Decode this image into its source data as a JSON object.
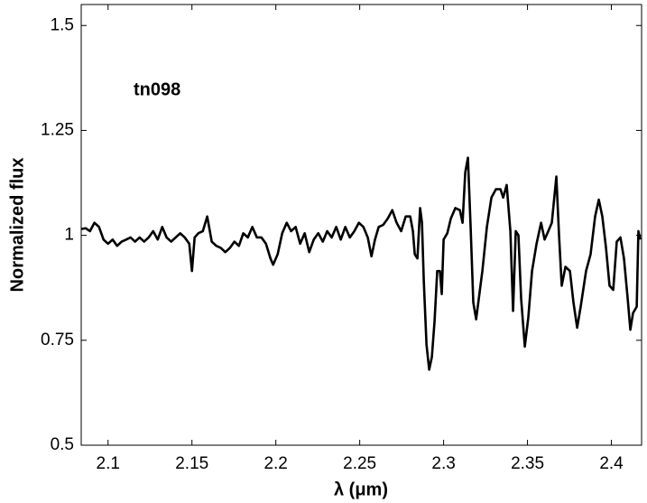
{
  "chart_data": {
    "type": "line",
    "xlabel": "λ (μm)",
    "ylabel": "Normalized flux",
    "annotation": "tn098",
    "color": "#000000",
    "x": [
      2.0839,
      2.0866,
      2.0892,
      2.0919,
      2.0946,
      2.0973,
      2.1,
      2.1027,
      2.1054,
      2.1081,
      2.1108,
      2.1134,
      2.1161,
      2.1188,
      2.1215,
      2.1242,
      2.1269,
      2.1296,
      2.1323,
      2.1349,
      2.1376,
      2.1403,
      2.143,
      2.1457,
      2.1484,
      2.15,
      2.1516,
      2.1538,
      2.1565,
      2.1591,
      2.1618,
      2.1645,
      2.1672,
      2.1699,
      2.1726,
      2.1753,
      2.178,
      2.1806,
      2.1833,
      2.186,
      2.1887,
      2.1914,
      2.1941,
      2.1968,
      2.1984,
      2.2011,
      2.2038,
      2.2065,
      2.2091,
      2.2118,
      2.2145,
      2.2172,
      2.2199,
      2.2226,
      2.2253,
      2.228,
      2.2306,
      2.2333,
      2.236,
      2.2387,
      2.2414,
      2.2441,
      2.2468,
      2.2495,
      2.2522,
      2.2548,
      2.257,
      2.2591,
      2.2613,
      2.264,
      2.2667,
      2.2694,
      2.272,
      2.2747,
      2.2774,
      2.2801,
      2.2817,
      2.2828,
      2.2844,
      2.286,
      2.2871,
      2.2882,
      2.2898,
      2.2914,
      2.293,
      2.2946,
      2.2962,
      2.2978,
      2.2989,
      2.3,
      2.3022,
      2.3043,
      2.307,
      2.3097,
      2.3113,
      2.3129,
      2.3145,
      2.3161,
      2.3177,
      2.3194,
      2.321,
      2.3231,
      2.3258,
      2.3285,
      2.3312,
      2.3339,
      2.3355,
      2.3376,
      2.3398,
      2.3414,
      2.343,
      2.3446,
      2.3462,
      2.3484,
      2.3505,
      2.3527,
      2.3554,
      2.3581,
      2.3602,
      2.3624,
      2.3645,
      2.3672,
      2.3688,
      2.3704,
      2.3726,
      2.3753,
      2.3774,
      2.3796,
      2.3817,
      2.3849,
      2.3876,
      2.3903,
      2.3925,
      2.3946,
      2.3968,
      2.3989,
      2.4011,
      2.4032,
      2.4054,
      2.4075,
      2.4097,
      2.4113,
      2.4129,
      2.4151,
      2.4161,
      2.4172
    ],
    "values": [
      1.015,
      1.017,
      1.01,
      1.03,
      1.02,
      0.99,
      0.98,
      0.99,
      0.975,
      0.985,
      0.99,
      0.995,
      0.985,
      0.995,
      0.985,
      0.995,
      1.01,
      0.99,
      1.02,
      0.995,
      0.985,
      0.995,
      1.005,
      0.995,
      0.98,
      0.915,
      0.995,
      1.005,
      1.01,
      1.045,
      0.985,
      0.975,
      0.97,
      0.96,
      0.97,
      0.985,
      0.975,
      1.005,
      0.995,
      1.02,
      0.995,
      0.995,
      0.98,
      0.945,
      0.93,
      0.955,
      1.005,
      1.03,
      1.01,
      1.02,
      0.98,
      1.005,
      0.96,
      0.99,
      1.005,
      0.985,
      1.01,
      0.995,
      1.02,
      0.99,
      1.02,
      0.995,
      1.01,
      1.03,
      1.02,
      0.995,
      0.95,
      0.99,
      1.02,
      1.025,
      1.04,
      1.06,
      1.03,
      1.01,
      1.045,
      1.045,
      1.01,
      0.955,
      0.945,
      1.065,
      1.03,
      0.89,
      0.74,
      0.68,
      0.71,
      0.795,
      0.915,
      0.915,
      0.86,
      0.99,
      1.005,
      1.04,
      1.065,
      1.06,
      1.03,
      1.15,
      1.185,
      1.02,
      0.84,
      0.8,
      0.85,
      0.915,
      1.02,
      1.09,
      1.11,
      1.11,
      1.09,
      1.12,
      1.01,
      0.82,
      1.01,
      1.0,
      0.85,
      0.735,
      0.805,
      0.915,
      0.98,
      1.03,
      0.99,
      1.01,
      1.03,
      1.14,
      1.0,
      0.88,
      0.925,
      0.915,
      0.84,
      0.78,
      0.83,
      0.915,
      0.955,
      1.045,
      1.085,
      1.045,
      0.97,
      0.88,
      0.87,
      0.985,
      0.995,
      0.945,
      0.85,
      0.775,
      0.815,
      0.83,
      1.01,
      0.99
    ],
    "xlim": [
      2.084,
      2.418
    ],
    "xticks": [
      2.1,
      2.15,
      2.2,
      2.25,
      2.3,
      2.35,
      2.4
    ],
    "ylim": [
      0.5,
      1.55
    ],
    "yticks": [
      0.5,
      0.75,
      1,
      1.25,
      1.5
    ],
    "grid": false
  }
}
